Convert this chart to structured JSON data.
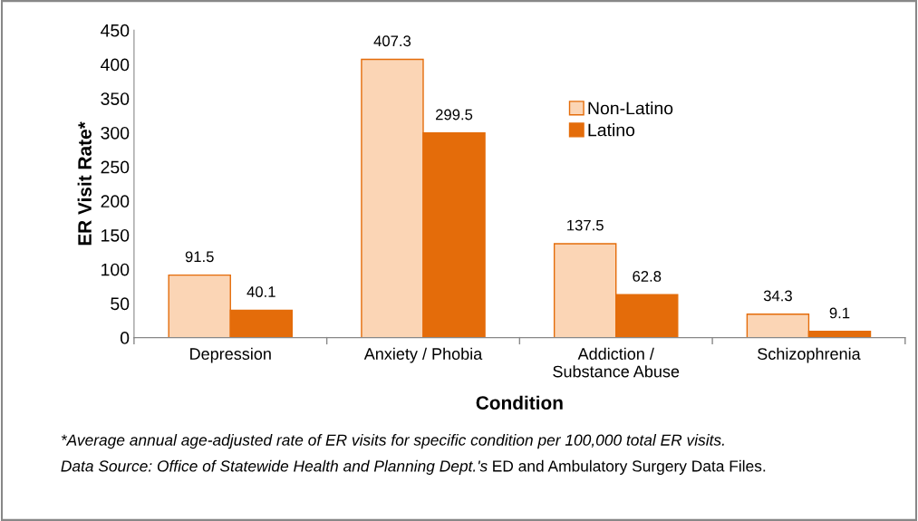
{
  "chart_data": {
    "type": "bar",
    "categories": [
      "Depression",
      "Anxiety / Phobia",
      "Addiction /\nSubstance Abuse",
      "Schizophrenia"
    ],
    "series": [
      {
        "name": "Non-Latino",
        "color": "#fbd5b5",
        "values": [
          91.5,
          407.3,
          137.5,
          34.3
        ]
      },
      {
        "name": "Latino",
        "color": "#e46c0a",
        "values": [
          40.1,
          299.5,
          62.8,
          9.1
        ]
      }
    ],
    "xlabel": "Condition",
    "ylabel": "ER Visit Rate*",
    "ylim": [
      0,
      450
    ],
    "yticks": [
      0,
      50,
      100,
      150,
      200,
      250,
      300,
      350,
      400,
      450
    ],
    "data_labels": true,
    "grid": false,
    "legend": "top right",
    "annotations": [
      "*Average annual age-adjusted rate of ER visits for specific condition per 100,000 total ER visits.",
      "Data Source: Office of Statewide Health and Planning Dept.'s",
      "ED and Ambulatory Surgery Data Files."
    ]
  }
}
